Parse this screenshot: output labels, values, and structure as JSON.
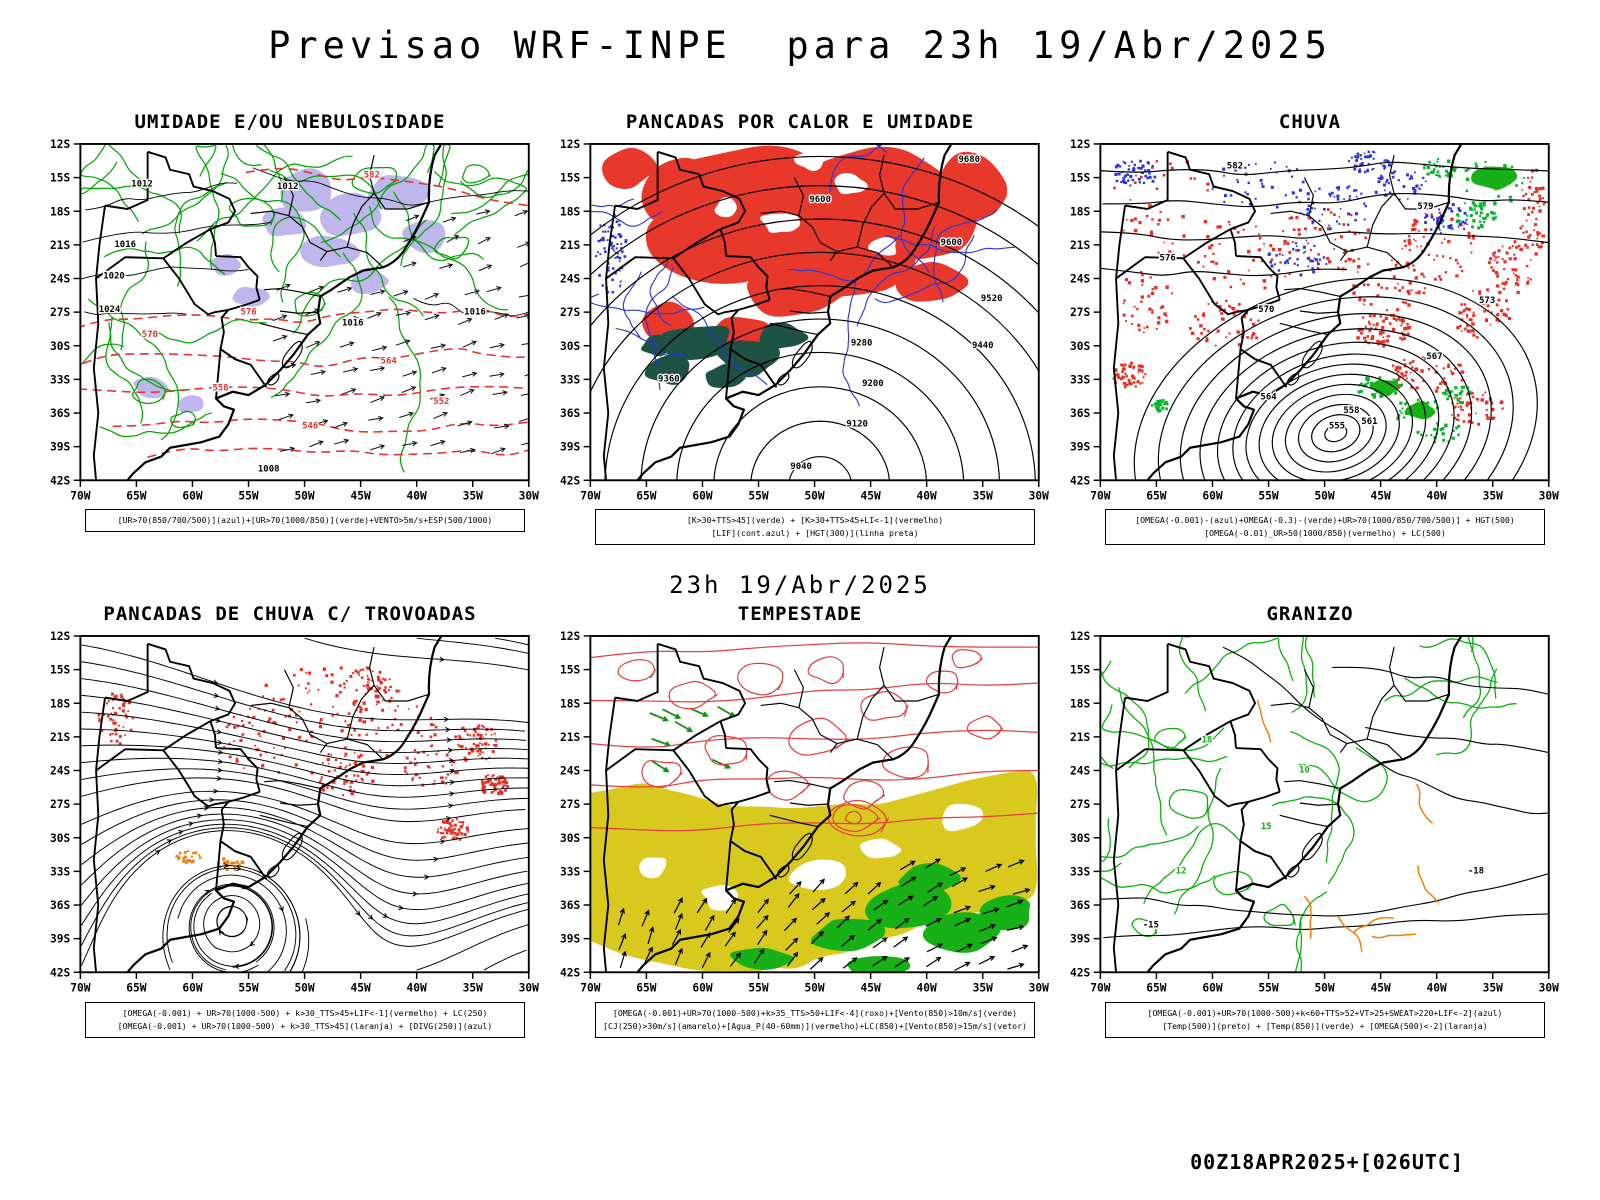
{
  "page": {
    "title": "Previsao WRF-INPE  para 23h 19/Abr/2025",
    "mid_caption": "23h 19/Abr/2025",
    "footer": "00Z18APR2025+[026UTC]"
  },
  "axes": {
    "lat": [
      "12S",
      "15S",
      "18S",
      "21S",
      "24S",
      "27S",
      "30S",
      "33S",
      "36S",
      "39S",
      "42S"
    ],
    "lon": [
      "70W",
      "65W",
      "60W",
      "55W",
      "50W",
      "45W",
      "40W",
      "35W",
      "30W"
    ]
  },
  "colors": {
    "green_contour": "#00a400",
    "red_fill": "#e8372b",
    "red_contour": "#e04040",
    "blue_contour": "#2736d9",
    "purple_shade": "#b7aeea",
    "dark_teal_fill": "#1d5244",
    "yellow_fill": "#d9c91e",
    "green_fill": "#17b017",
    "orange_fill": "#f08010",
    "black": "#000000"
  },
  "panels": [
    {
      "id": "umidade",
      "title": "UMIDADE E/OU NEBULOSIDADE",
      "legend": [
        "[UR>70(850/700/500)](azul)+[UR>70(1000/850)](verde)+VENTO>5m/s+ESP(500/1000)"
      ],
      "contour_labels": {
        "black": [
          "1012",
          "1012",
          "1016",
          "1020",
          "1024",
          "1016",
          "1016",
          "1008"
        ],
        "red": [
          "582",
          "576",
          "570",
          "564",
          "558",
          "552",
          "546"
        ]
      }
    },
    {
      "id": "calor",
      "title": "PANCADAS POR CALOR E UMIDADE",
      "legend": [
        "[K>30+TTS>45](verde) + [K>30+TTS>45+LI<-1](vermelho)",
        "[LIF](cont.azul) + [HGT(300)](linha preta)"
      ],
      "contour_labels": {
        "black": [
          "9680",
          "9600",
          "9600",
          "9520",
          "9440",
          "9360",
          "9280",
          "9200",
          "9120",
          "9040"
        ]
      }
    },
    {
      "id": "chuva",
      "title": "CHUVA",
      "legend": [
        "[OMEGA(-0.001)-(azul)+OMEGA(-0.3)-(verde)+UR>70(1000/850/700/500)] + HGT(500)",
        "[OMEGA(-0.01)_UR>50(1000/850)(vermelho) + LC(500)"
      ],
      "contour_labels": {
        "black": [
          "582",
          "579",
          "576",
          "573",
          "570",
          "567",
          "564",
          "561",
          "558",
          "555"
        ]
      }
    },
    {
      "id": "trovoadas",
      "title": "PANCADAS DE CHUVA C/ TROVOADAS",
      "legend": [
        "[OMEGA(-0.001) + UR>70(1000-500) + k>30_TTS>45+LIF<-1](vermelho) + LC(250)",
        "[OMEGA(-0.001) + UR>70(1000-500) + k>30_TTS>45](laranja) + [DIVG(250)](azul)"
      ]
    },
    {
      "id": "tempestade",
      "title": "TEMPESTADE",
      "legend": [
        "[OMEGA(-0.001)+UR>70(1000-500)+k>35_TTS>50+LIF<-4](roxo)+[Vento(850)>10m/s](verde)",
        "[CJ(250)>30m/s](amarelo)+[Agua_P(40-60mm)](vermelho)+LC(850)+[Vento(850)>15m/s](vetor)"
      ]
    },
    {
      "id": "granizo",
      "title": "GRANIZO",
      "legend": [
        "[OMEGA(-0.001)+UR>70(1000-500)+k<60+TTS>52+VT>25+SWEAT>220+LIF<-2](azul)",
        "[Temp(500)](preto) + [Temp(850)](verde) + [OMEGA(500)<-2](laranja)"
      ],
      "contour_labels": {
        "green": [
          "18",
          "15",
          "12",
          "10"
        ],
        "black": [
          "-15",
          "-18"
        ]
      }
    }
  ]
}
